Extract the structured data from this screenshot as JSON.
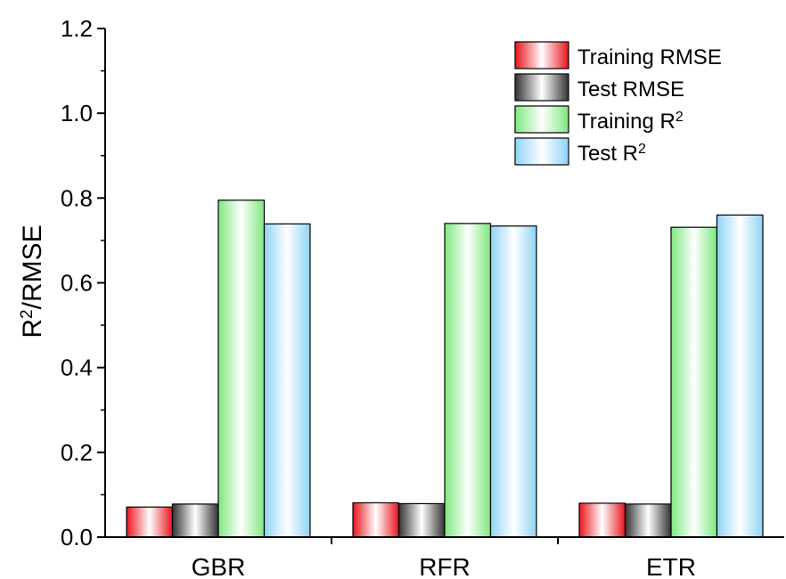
{
  "chart_data": {
    "type": "bar",
    "categories": [
      "GBR",
      "RFR",
      "ETR"
    ],
    "series": [
      {
        "name": "Training RMSE",
        "values": [
          0.071,
          0.081,
          0.08
        ],
        "color": "#e8141c"
      },
      {
        "name": "Test RMSE",
        "values": [
          0.078,
          0.079,
          0.078
        ],
        "color": "#333333"
      },
      {
        "name": "Training R",
        "name_sup": "2",
        "values": [
          0.795,
          0.74,
          0.731
        ],
        "color": "#7ee77e"
      },
      {
        "name": "Test R",
        "name_sup": "2",
        "values": [
          0.739,
          0.734,
          0.76
        ],
        "color": "#8fd3f5"
      }
    ],
    "ylabel": {
      "base": "R",
      "sup": "2",
      "rest": "/RMSE"
    },
    "xlabel": "",
    "ylim": [
      0,
      1.2
    ],
    "yticks": [
      "0.0",
      "0.2",
      "0.4",
      "0.6",
      "0.8",
      "1.0",
      "1.2"
    ],
    "legend_position": "top-right",
    "grid": false
  }
}
